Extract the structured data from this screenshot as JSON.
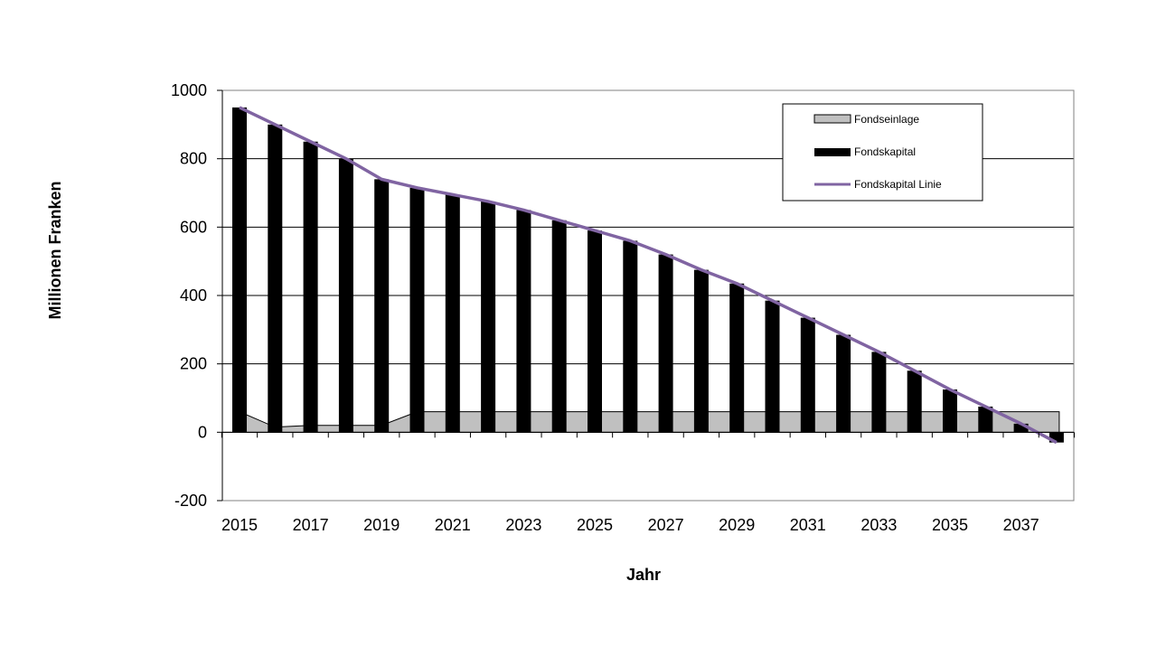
{
  "chart_data": {
    "type": "bar",
    "xlabel": "Jahr",
    "ylabel": "Millionen Franken",
    "ylim": [
      -200,
      1000
    ],
    "yticks": [
      1000,
      800,
      600,
      400,
      200,
      0,
      -200
    ],
    "x": [
      2015,
      2016,
      2017,
      2018,
      2019,
      2020,
      2021,
      2022,
      2023,
      2024,
      2025,
      2026,
      2027,
      2028,
      2029,
      2030,
      2031,
      2032,
      2033,
      2034,
      2035,
      2036,
      2037,
      2038
    ],
    "xtick_labels": [
      "2015",
      "2017",
      "2019",
      "2021",
      "2023",
      "2025",
      "2027",
      "2029",
      "2031",
      "2033",
      "2035",
      "2037"
    ],
    "grid": "horizontal",
    "legend_position": "top-right",
    "series": [
      {
        "name": "Fondseinlage",
        "kind": "area",
        "color": "#c0c0c0",
        "values": [
          60,
          15,
          20,
          20,
          20,
          60,
          60,
          60,
          60,
          60,
          60,
          60,
          60,
          60,
          60,
          60,
          60,
          60,
          60,
          60,
          60,
          60,
          60,
          60
        ]
      },
      {
        "name": "Fondskapital",
        "kind": "bar",
        "color": "#000000",
        "values": [
          950,
          900,
          850,
          800,
          740,
          715,
          695,
          675,
          650,
          620,
          590,
          560,
          520,
          475,
          435,
          385,
          335,
          285,
          235,
          180,
          125,
          75,
          25,
          -30
        ]
      },
      {
        "name": "Fondskapital Linie",
        "kind": "line",
        "color": "#8064a2",
        "values": [
          950,
          900,
          850,
          800,
          740,
          715,
          695,
          675,
          650,
          620,
          590,
          560,
          520,
          475,
          435,
          385,
          335,
          285,
          235,
          180,
          125,
          75,
          25,
          -30
        ]
      }
    ]
  }
}
